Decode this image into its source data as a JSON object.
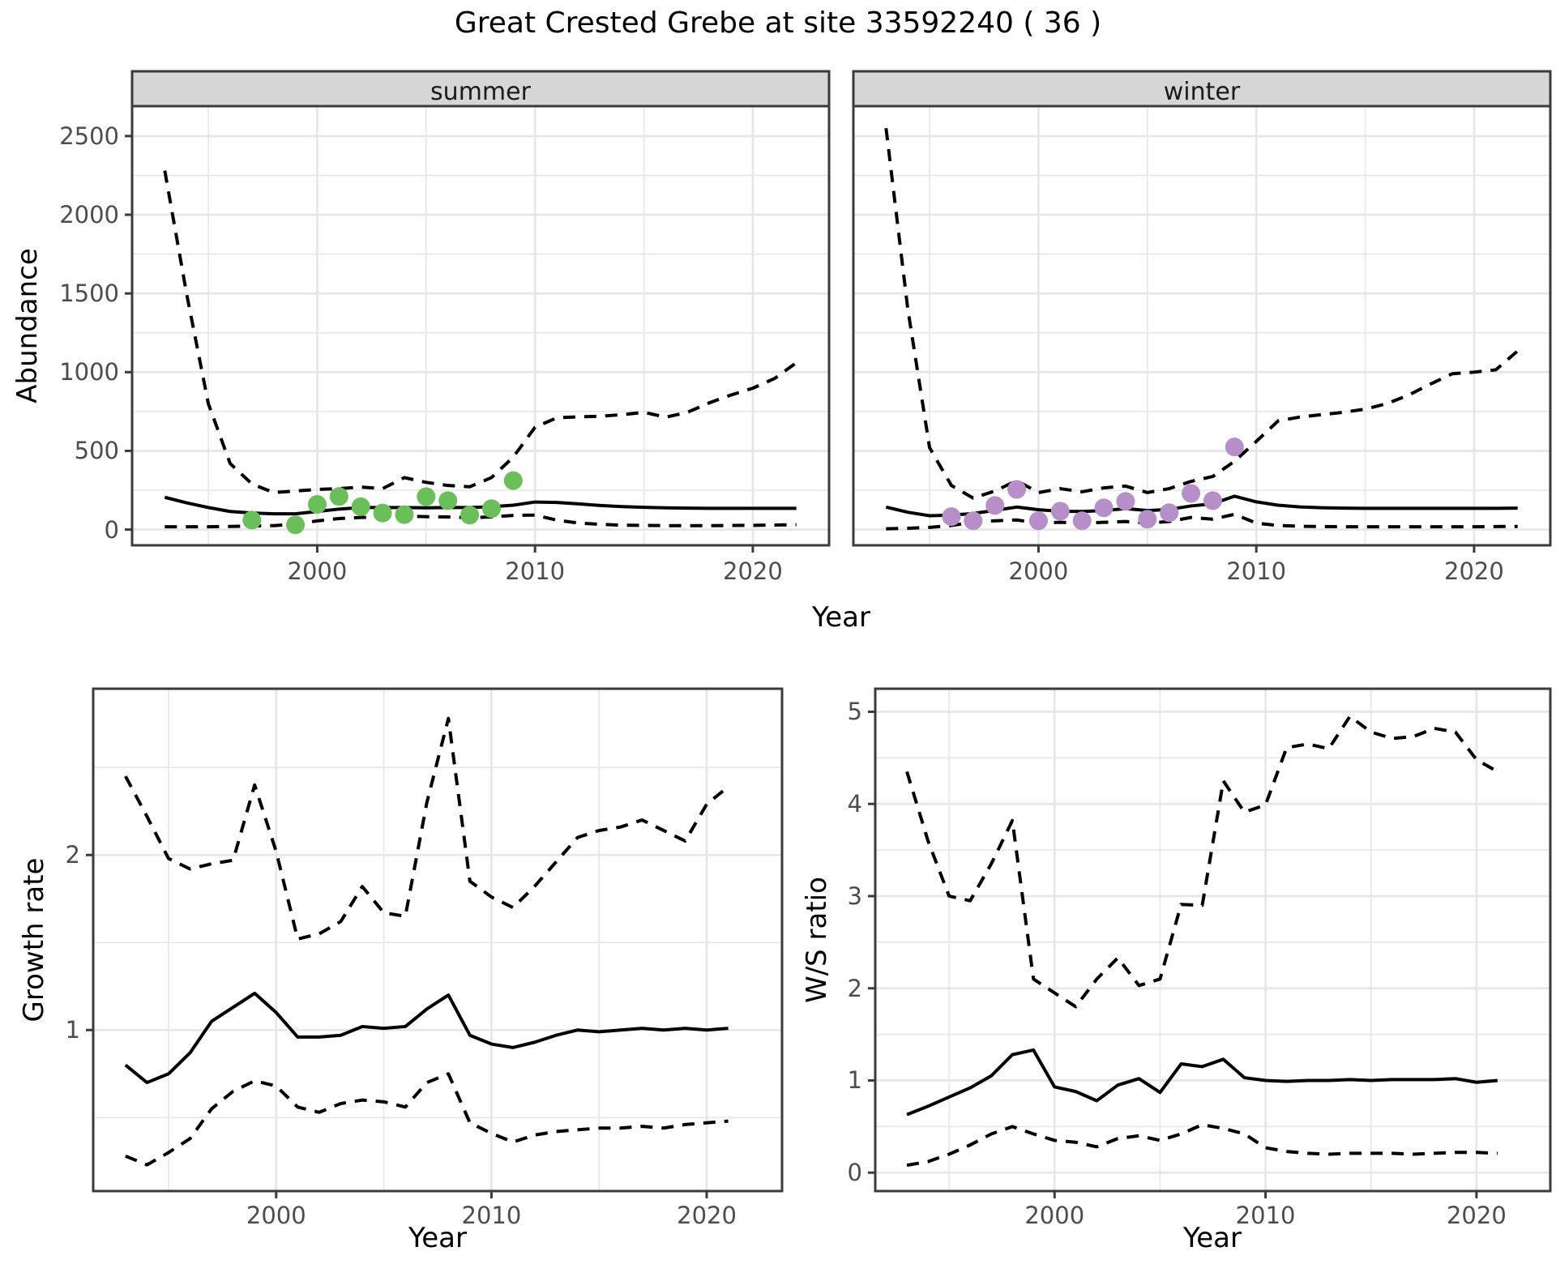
{
  "title": "Great Crested Grebe at site 33592240 ( 36 )",
  "colors": {
    "summer_point": "#6abf5a",
    "winter_point": "#b78fc8",
    "line": "#000000",
    "panel_border": "#3b3b3b",
    "strip_fill": "#d6d6d6",
    "grid": "#e6e6e6",
    "tick_text": "#4d4d4d",
    "background": "#ffffff"
  },
  "facets": {
    "summer": "summer",
    "winter": "winter"
  },
  "axis_labels": {
    "abundance": "Abundance",
    "growth": "Growth rate",
    "ws": "W/S ratio",
    "year": "Year"
  },
  "chart_data": [
    {
      "id": "abundance_summer",
      "type": "line",
      "facet": "summer",
      "xlabel": "Year",
      "ylabel": "Abundance",
      "x_ticks": [
        2000,
        2010,
        2020
      ],
      "y_ticks": [
        0,
        500,
        1000,
        1500,
        2000,
        2500
      ],
      "x_minor": [
        1995,
        2005,
        2015
      ],
      "y_minor": [
        250,
        750,
        1250,
        1750,
        2250
      ],
      "xlim": [
        1991.5,
        2023.5
      ],
      "ylim": [
        -100,
        2690
      ],
      "x": [
        1993,
        1994,
        1995,
        1996,
        1997,
        1998,
        1999,
        2000,
        2001,
        2002,
        2003,
        2004,
        2005,
        2006,
        2007,
        2008,
        2009,
        2010,
        2011,
        2012,
        2013,
        2014,
        2015,
        2016,
        2017,
        2018,
        2019,
        2020,
        2021,
        2022
      ],
      "series": [
        {
          "name": "mean",
          "style": "solid",
          "values": [
            205,
            170,
            140,
            115,
            105,
            100,
            100,
            115,
            130,
            140,
            140,
            140,
            138,
            140,
            140,
            145,
            155,
            175,
            172,
            163,
            153,
            146,
            141,
            138,
            136,
            135,
            135,
            135,
            135,
            135
          ]
        },
        {
          "name": "upper_ci",
          "style": "dashed",
          "values": [
            2280,
            1500,
            800,
            420,
            290,
            235,
            245,
            255,
            260,
            270,
            260,
            330,
            300,
            280,
            272,
            330,
            460,
            650,
            710,
            716,
            720,
            730,
            745,
            714,
            745,
            805,
            855,
            898,
            960,
            1060
          ]
        },
        {
          "name": "lower_ci",
          "style": "dashed",
          "values": [
            18,
            18,
            18,
            20,
            22,
            25,
            35,
            55,
            70,
            77,
            80,
            85,
            82,
            80,
            75,
            80,
            90,
            92,
            60,
            41,
            33,
            28,
            26,
            25,
            25,
            25,
            26,
            27,
            29,
            31
          ]
        }
      ],
      "points": [
        [
          1997,
          60
        ],
        [
          1999,
          30
        ],
        [
          2000,
          160
        ],
        [
          2001,
          210
        ],
        [
          2002,
          145
        ],
        [
          2003,
          105
        ],
        [
          2004,
          95
        ],
        [
          2005,
          209
        ],
        [
          2006,
          184
        ],
        [
          2007,
          92
        ],
        [
          2008,
          133
        ],
        [
          2009,
          311
        ]
      ],
      "point_color": "#6abf5a"
    },
    {
      "id": "abundance_winter",
      "type": "line",
      "facet": "winter",
      "xlabel": "Year",
      "ylabel": "Abundance",
      "x_ticks": [
        2000,
        2010,
        2020
      ],
      "y_ticks": [
        0,
        500,
        1000,
        1500,
        2000,
        2500
      ],
      "x_minor": [
        1995,
        2005,
        2015
      ],
      "y_minor": [
        250,
        750,
        1250,
        1750,
        2250
      ],
      "xlim": [
        1991.5,
        2023.5
      ],
      "ylim": [
        -100,
        2690
      ],
      "x": [
        1993,
        1994,
        1995,
        1996,
        1997,
        1998,
        1999,
        2000,
        2001,
        2002,
        2003,
        2004,
        2005,
        2006,
        2007,
        2008,
        2009,
        2010,
        2011,
        2012,
        2013,
        2014,
        2015,
        2016,
        2017,
        2018,
        2019,
        2020,
        2021,
        2022
      ],
      "series": [
        {
          "name": "mean",
          "style": "solid",
          "values": [
            143,
            110,
            88,
            92,
            102,
            122,
            143,
            126,
            116,
            115,
            121,
            133,
            121,
            128,
            150,
            164,
            212,
            176,
            155,
            144,
            139,
            136,
            135,
            135,
            135,
            135,
            135,
            135,
            135,
            136
          ]
        },
        {
          "name": "upper_ci",
          "style": "dashed",
          "values": [
            2550,
            1400,
            520,
            280,
            200,
            245,
            311,
            235,
            260,
            240,
            265,
            276,
            235,
            260,
            306,
            337,
            434,
            560,
            690,
            715,
            730,
            745,
            765,
            800,
            855,
            925,
            990,
            1000,
            1015,
            1135
          ]
        },
        {
          "name": "lower_ci",
          "style": "dashed",
          "values": [
            5,
            8,
            14,
            26,
            46,
            56,
            61,
            41,
            46,
            41,
            46,
            51,
            41,
            51,
            77,
            66,
            97,
            41,
            26,
            21,
            19,
            18,
            18,
            18,
            18,
            18,
            18,
            18,
            19,
            20
          ]
        }
      ],
      "points": [
        [
          1996,
          82
        ],
        [
          1997,
          56
        ],
        [
          1998,
          153
        ],
        [
          1999,
          255
        ],
        [
          2000,
          56
        ],
        [
          2001,
          117
        ],
        [
          2002,
          56
        ],
        [
          2003,
          138
        ],
        [
          2004,
          179
        ],
        [
          2005,
          66
        ],
        [
          2006,
          107
        ],
        [
          2007,
          230
        ],
        [
          2008,
          184
        ],
        [
          2009,
          525
        ]
      ],
      "point_color": "#b78fc8"
    },
    {
      "id": "growth_rate",
      "type": "line",
      "xlabel": "Year",
      "ylabel": "Growth rate",
      "x_ticks": [
        2000,
        2010,
        2020
      ],
      "y_ticks": [
        1,
        2
      ],
      "x_minor": [
        1995,
        2005,
        2015
      ],
      "y_minor": [
        0.5,
        1.5,
        2.5
      ],
      "xlim": [
        1991.5,
        2023.5
      ],
      "ylim": [
        0.08,
        2.95
      ],
      "x": [
        1993,
        1994,
        1995,
        1996,
        1997,
        1998,
        1999,
        2000,
        2001,
        2002,
        2003,
        2004,
        2005,
        2006,
        2007,
        2008,
        2009,
        2010,
        2011,
        2012,
        2013,
        2014,
        2015,
        2016,
        2017,
        2018,
        2019,
        2020,
        2021
      ],
      "series": [
        {
          "name": "mean",
          "style": "solid",
          "values": [
            0.8,
            0.7,
            0.75,
            0.87,
            1.05,
            1.13,
            1.21,
            1.1,
            0.96,
            0.96,
            0.97,
            1.02,
            1.01,
            1.02,
            1.12,
            1.2,
            0.97,
            0.92,
            0.9,
            0.93,
            0.97,
            1.0,
            0.99,
            1.0,
            1.01,
            1.0,
            1.01,
            1.0,
            1.01
          ]
        },
        {
          "name": "upper_ci",
          "style": "dashed",
          "values": [
            2.45,
            2.22,
            1.98,
            1.92,
            1.95,
            1.97,
            2.4,
            2.02,
            1.52,
            1.55,
            1.62,
            1.82,
            1.67,
            1.65,
            2.3,
            2.78,
            1.85,
            1.76,
            1.7,
            1.82,
            1.96,
            2.1,
            2.14,
            2.16,
            2.2,
            2.14,
            2.08,
            2.29,
            2.39
          ]
        },
        {
          "name": "lower_ci",
          "style": "dashed",
          "values": [
            0.28,
            0.23,
            0.3,
            0.38,
            0.55,
            0.65,
            0.71,
            0.68,
            0.56,
            0.53,
            0.58,
            0.6,
            0.59,
            0.56,
            0.7,
            0.75,
            0.47,
            0.41,
            0.36,
            0.4,
            0.42,
            0.43,
            0.44,
            0.44,
            0.45,
            0.44,
            0.46,
            0.47,
            0.48
          ]
        }
      ],
      "points": [],
      "point_color": "#000000"
    },
    {
      "id": "ws_ratio",
      "type": "line",
      "xlabel": "Year",
      "ylabel": "W/S ratio",
      "x_ticks": [
        2000,
        2010,
        2020
      ],
      "y_ticks": [
        0,
        1,
        2,
        3,
        4,
        5
      ],
      "x_minor": [
        1995,
        2005,
        2015
      ],
      "y_minor": [
        0.5,
        1.5,
        2.5,
        3.5,
        4.5
      ],
      "xlim": [
        1991.5,
        2023.5
      ],
      "ylim": [
        -0.2,
        5.25
      ],
      "x": [
        1993,
        1994,
        1995,
        1996,
        1997,
        1998,
        1999,
        2000,
        2001,
        2002,
        2003,
        2004,
        2005,
        2006,
        2007,
        2008,
        2009,
        2010,
        2011,
        2012,
        2013,
        2014,
        2015,
        2016,
        2017,
        2018,
        2019,
        2020,
        2021
      ],
      "series": [
        {
          "name": "mean",
          "style": "solid",
          "values": [
            0.63,
            0.72,
            0.82,
            0.92,
            1.05,
            1.28,
            1.33,
            0.93,
            0.88,
            0.78,
            0.95,
            1.02,
            0.87,
            1.18,
            1.15,
            1.23,
            1.03,
            1.0,
            0.99,
            1.0,
            1.0,
            1.01,
            1.0,
            1.01,
            1.01,
            1.01,
            1.02,
            0.98,
            1.0
          ]
        },
        {
          "name": "upper_ci",
          "style": "dashed",
          "values": [
            4.35,
            3.6,
            3.0,
            2.95,
            3.35,
            3.82,
            2.1,
            1.95,
            1.8,
            2.1,
            2.33,
            2.03,
            2.1,
            2.91,
            2.9,
            4.25,
            3.91,
            3.99,
            4.61,
            4.65,
            4.6,
            4.95,
            4.78,
            4.71,
            4.73,
            4.82,
            4.78,
            4.48,
            4.35
          ]
        },
        {
          "name": "lower_ci",
          "style": "dashed",
          "values": [
            0.08,
            0.12,
            0.2,
            0.3,
            0.42,
            0.5,
            0.42,
            0.35,
            0.33,
            0.28,
            0.37,
            0.4,
            0.35,
            0.42,
            0.52,
            0.48,
            0.42,
            0.27,
            0.23,
            0.21,
            0.2,
            0.21,
            0.21,
            0.21,
            0.2,
            0.21,
            0.22,
            0.22,
            0.21
          ]
        }
      ],
      "points": [],
      "point_color": "#000000"
    }
  ]
}
